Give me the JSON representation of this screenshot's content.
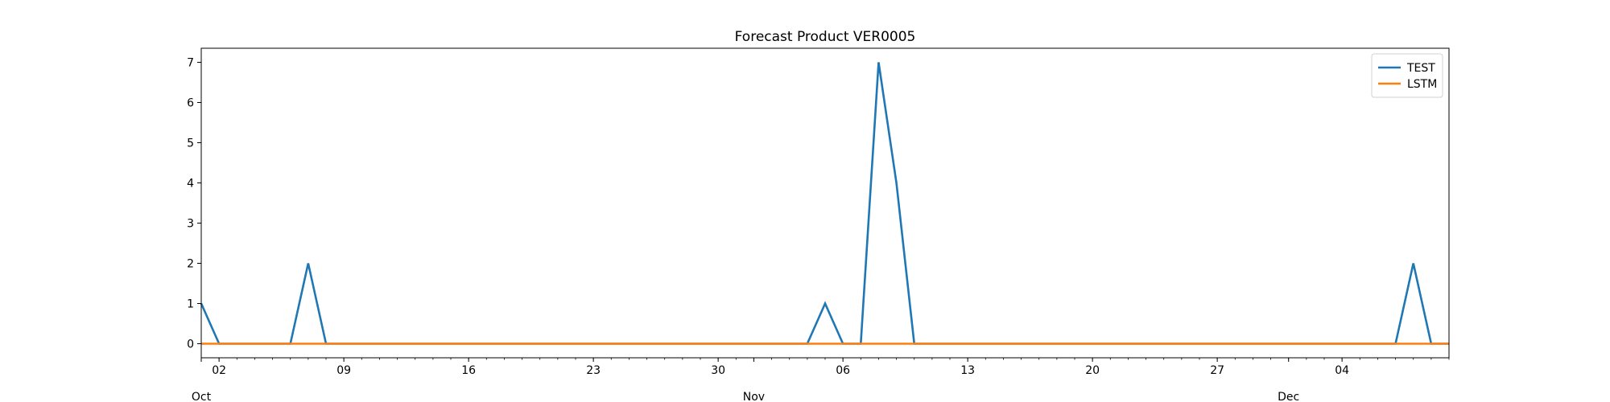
{
  "chart_data": {
    "type": "line",
    "title": "Forecast Product VER0005",
    "xlabel": "",
    "ylabel": "",
    "x_start": "2023-10-01",
    "x_end": "2023-12-10",
    "ylim": [
      -0.35,
      7.35
    ],
    "y_ticks": [
      0,
      1,
      2,
      3,
      4,
      5,
      6,
      7
    ],
    "x_major_ticks": [
      {
        "date": "2023-10-02",
        "label": "02"
      },
      {
        "date": "2023-10-09",
        "label": "09"
      },
      {
        "date": "2023-10-16",
        "label": "16"
      },
      {
        "date": "2023-10-23",
        "label": "23"
      },
      {
        "date": "2023-10-30",
        "label": "30"
      },
      {
        "date": "2023-11-06",
        "label": "06"
      },
      {
        "date": "2023-11-13",
        "label": "13"
      },
      {
        "date": "2023-11-20",
        "label": "20"
      },
      {
        "date": "2023-11-27",
        "label": "27"
      },
      {
        "date": "2023-12-04",
        "label": "04"
      }
    ],
    "x_month_labels": [
      {
        "date": "2023-10-01",
        "label": "Oct"
      },
      {
        "date": "2023-11-01",
        "label": "Nov"
      },
      {
        "date": "2023-12-01",
        "label": "Dec"
      }
    ],
    "legend_position": "top-right",
    "grid": false,
    "series": [
      {
        "name": "TEST",
        "color": "#1f77b4",
        "points": [
          [
            "2023-10-01",
            1
          ],
          [
            "2023-10-02",
            0
          ],
          [
            "2023-10-03",
            0
          ],
          [
            "2023-10-04",
            0
          ],
          [
            "2023-10-05",
            0
          ],
          [
            "2023-10-06",
            0
          ],
          [
            "2023-10-07",
            2
          ],
          [
            "2023-10-08",
            0
          ],
          [
            "2023-10-09",
            0
          ],
          [
            "2023-10-15",
            0
          ],
          [
            "2023-10-22",
            0
          ],
          [
            "2023-10-29",
            0
          ],
          [
            "2023-11-01",
            0
          ],
          [
            "2023-11-04",
            0
          ],
          [
            "2023-11-05",
            1
          ],
          [
            "2023-11-06",
            0
          ],
          [
            "2023-11-07",
            0
          ],
          [
            "2023-11-08",
            7
          ],
          [
            "2023-11-09",
            4
          ],
          [
            "2023-11-10",
            0
          ],
          [
            "2023-11-11",
            0
          ],
          [
            "2023-11-20",
            0
          ],
          [
            "2023-11-30",
            0
          ],
          [
            "2023-12-07",
            0
          ],
          [
            "2023-12-08",
            2
          ],
          [
            "2023-12-09",
            0
          ],
          [
            "2023-12-10",
            0
          ]
        ]
      },
      {
        "name": "LSTM",
        "color": "#ff7f0e",
        "points": [
          [
            "2023-10-01",
            0
          ],
          [
            "2023-12-10",
            0
          ]
        ]
      }
    ]
  }
}
